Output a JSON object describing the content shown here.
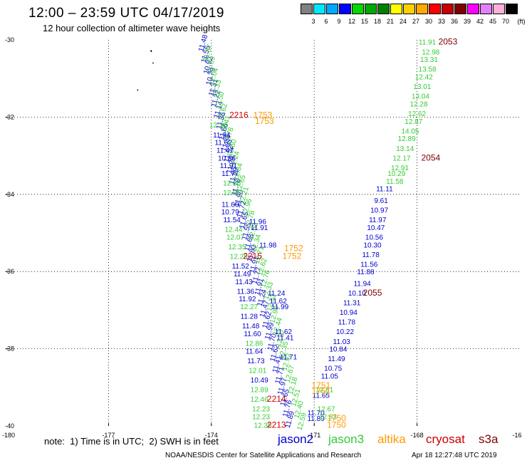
{
  "header": {
    "title": "12:00 – 23:59 UTC 04/17/2019",
    "subtitle": "12 hour collection of altimeter wave heights"
  },
  "color_scale": {
    "unit": "(ft)",
    "labels": [
      "3",
      "6",
      "9",
      "12",
      "15",
      "18",
      "21",
      "24",
      "27",
      "30",
      "33",
      "36",
      "39",
      "42",
      "45",
      "70"
    ],
    "colors": [
      "#808080",
      "#00e8ff",
      "#00a8ff",
      "#0000ff",
      "#00d800",
      "#00a800",
      "#008000",
      "#ffff00",
      "#ffd000",
      "#ffa800",
      "#ff0000",
      "#c80000",
      "#800000",
      "#ff00ff",
      "#e080ff",
      "#ffb0d8",
      "#000000"
    ]
  },
  "axes": {
    "x_ticks": [
      "-180",
      "-177",
      "-174",
      "-171",
      "-168",
      "-16"
    ],
    "y_ticks": [
      "-30",
      "-32",
      "-34",
      "-36",
      "-38",
      "-40"
    ]
  },
  "satellite_colors": {
    "jason2": "#0000cc",
    "jason3": "#33cc33",
    "altika": "#ff9900",
    "cryosat": "#cc0000",
    "s3a": "#800000"
  },
  "tracks": [
    {
      "id": "j2a",
      "sat": "jason2",
      "lon0": -174.18,
      "lat0": -30.1,
      "lon1": -171.65,
      "lat1": -39.85,
      "rot": -74,
      "labels": [
        "11.48",
        "11.55",
        "10.92",
        "10.79",
        "11.31",
        "11.22",
        "11.14",
        "11.36",
        "11.66",
        "11.36",
        "11.52",
        "11.29",
        "11.59",
        "11.76",
        "11.90",
        "11.72",
        "11.65",
        "11.55",
        "11.68",
        "11.80",
        "11.91",
        "11.77",
        "11.91",
        "11.24",
        "11.47",
        "11.62",
        "11.99",
        "11.70",
        "11.62",
        "11.41",
        "11.71",
        "11.97",
        "11.65",
        "11.76",
        "11.89"
      ]
    },
    {
      "id": "j3a",
      "sat": "jason3",
      "lon0": -174.05,
      "lat0": -30.35,
      "lon1": -171.3,
      "lat1": -39.9,
      "rot": -74,
      "labels": [
        "11.87",
        "11.59",
        "12.04",
        "12.33",
        "12.50",
        "12.62",
        "12.41",
        "12.78",
        "12.60",
        "12.24",
        "12.84",
        "12.65",
        "12.21",
        "12.96",
        "12.78",
        "12.53",
        "12.34",
        "12.71",
        "12.62",
        "12.76",
        "12.33",
        "12.52",
        "12.94",
        "12.44",
        "12.87",
        "12.35",
        "12.92",
        "12.67",
        "12.18",
        "12.51",
        "12.40",
        "12.59"
      ]
    }
  ],
  "columns": [
    {
      "id": "j2col",
      "sat": "jason2",
      "labels": [
        {
          "text": "11.94",
          "lon": -173.7,
          "lat": -32.45
        },
        {
          "text": "11.62",
          "lon": -173.65,
          "lat": -32.65
        },
        {
          "text": "11.47",
          "lon": -173.6,
          "lat": -32.85
        },
        {
          "text": "10.86",
          "lon": -173.55,
          "lat": -33.05
        },
        {
          "text": "11.91",
          "lon": -173.5,
          "lat": -33.25
        },
        {
          "text": "11.77",
          "lon": -173.45,
          "lat": -33.45
        },
        {
          "text": "11.60",
          "lon": -173.45,
          "lat": -34.25
        },
        {
          "text": "10.79",
          "lon": -173.45,
          "lat": -34.45
        },
        {
          "text": "11.54",
          "lon": -173.4,
          "lat": -34.65
        },
        {
          "text": "11.52",
          "lon": -173.15,
          "lat": -35.85
        },
        {
          "text": "11.49",
          "lon": -173.1,
          "lat": -36.05
        },
        {
          "text": "11.43",
          "lon": -173.05,
          "lat": -36.25
        },
        {
          "text": "11.36",
          "lon": -173.0,
          "lat": -36.5
        },
        {
          "text": "11.92",
          "lon": -172.95,
          "lat": -36.7
        },
        {
          "text": "11.28",
          "lon": -172.9,
          "lat": -37.15
        },
        {
          "text": "11.48",
          "lon": -172.85,
          "lat": -37.4
        },
        {
          "text": "11.60",
          "lon": -172.8,
          "lat": -37.6
        },
        {
          "text": "11.64",
          "lon": -172.75,
          "lat": -38.05
        },
        {
          "text": "11.73",
          "lon": -172.7,
          "lat": -38.3
        },
        {
          "text": "10.49",
          "lon": -172.6,
          "lat": -38.8
        }
      ]
    },
    {
      "id": "j3col",
      "sat": "jason3",
      "labels": [
        {
          "text": "12.30",
          "lon": -173.8,
          "lat": -32.2
        },
        {
          "text": "12.86",
          "lon": -173.4,
          "lat": -33.7
        },
        {
          "text": "12.86",
          "lon": -173.4,
          "lat": -33.95
        },
        {
          "text": "12.44",
          "lon": -173.35,
          "lat": -34.9
        },
        {
          "text": "12.07",
          "lon": -173.3,
          "lat": -35.1
        },
        {
          "text": "12.35",
          "lon": -173.25,
          "lat": -35.35
        },
        {
          "text": "12.28",
          "lon": -173.2,
          "lat": -35.6
        },
        {
          "text": "12.27",
          "lon": -172.9,
          "lat": -36.9
        },
        {
          "text": "12.86",
          "lon": -172.75,
          "lat": -37.85
        },
        {
          "text": "12.01",
          "lon": -172.65,
          "lat": -38.55
        },
        {
          "text": "12.89",
          "lon": -172.6,
          "lat": -39.05
        },
        {
          "text": "12.46",
          "lon": -172.6,
          "lat": -39.3
        },
        {
          "text": "12.23",
          "lon": -172.55,
          "lat": -39.55
        },
        {
          "text": "12.23",
          "lon": -172.55,
          "lat": -39.75
        },
        {
          "text": "12.36",
          "lon": -172.5,
          "lat": -39.97
        }
      ]
    },
    {
      "id": "rjcol",
      "sat": "jason2",
      "labels": [
        {
          "text": "11.11",
          "lon": -168.95,
          "lat": -33.85
        },
        {
          "text": "9.61",
          "lon": -169.05,
          "lat": -34.15
        },
        {
          "text": "10.97",
          "lon": -169.1,
          "lat": -34.4
        },
        {
          "text": "11.97",
          "lon": -169.15,
          "lat": -34.65
        },
        {
          "text": "10.47",
          "lon": -169.2,
          "lat": -34.85
        },
        {
          "text": "10.56",
          "lon": -169.25,
          "lat": -35.1
        },
        {
          "text": "10.30",
          "lon": -169.3,
          "lat": -35.3
        },
        {
          "text": "11.78",
          "lon": -169.35,
          "lat": -35.55
        },
        {
          "text": "11.56",
          "lon": -169.4,
          "lat": -35.8
        },
        {
          "text": "11.88",
          "lon": -169.5,
          "lat": -36.0
        },
        {
          "text": "11.94",
          "lon": -169.6,
          "lat": -36.3
        },
        {
          "text": "10.10",
          "lon": -169.75,
          "lat": -36.55
        },
        {
          "text": "11.31",
          "lon": -169.9,
          "lat": -36.8
        },
        {
          "text": "10.94",
          "lon": -170.0,
          "lat": -37.05
        },
        {
          "text": "11.78",
          "lon": -170.05,
          "lat": -37.3
        },
        {
          "text": "10.22",
          "lon": -170.1,
          "lat": -37.55
        },
        {
          "text": "11.03",
          "lon": -170.2,
          "lat": -37.8
        },
        {
          "text": "10.84",
          "lon": -170.3,
          "lat": -38.0
        },
        {
          "text": "11.49",
          "lon": -170.35,
          "lat": -38.25
        },
        {
          "text": "10.75",
          "lon": -170.45,
          "lat": -38.5
        },
        {
          "text": "11.05",
          "lon": -170.55,
          "lat": -38.7
        },
        {
          "text": "11.65",
          "lon": -170.8,
          "lat": -39.2
        },
        {
          "text": "11.70",
          "lon": -170.95,
          "lat": -39.65
        },
        {
          "text": "11.89",
          "lon": -170.95,
          "lat": -39.8
        }
      ]
    },
    {
      "id": "r3col",
      "sat": "jason3",
      "labels": [
        {
          "text": "11.91",
          "lon": -167.7,
          "lat": -30.05
        },
        {
          "text": "12.98",
          "lon": -167.6,
          "lat": -30.3
        },
        {
          "text": "13.31",
          "lon": -167.65,
          "lat": -30.5
        },
        {
          "text": "13.58",
          "lon": -167.7,
          "lat": -30.75
        },
        {
          "text": "12.42",
          "lon": -167.8,
          "lat": -30.95
        },
        {
          "text": "13.01",
          "lon": -167.85,
          "lat": -31.2
        },
        {
          "text": "13.04",
          "lon": -167.9,
          "lat": -31.45
        },
        {
          "text": "12.28",
          "lon": -167.95,
          "lat": -31.65
        },
        {
          "text": "12.62",
          "lon": -168.0,
          "lat": -31.9
        },
        {
          "text": "12.87",
          "lon": -168.1,
          "lat": -32.1
        },
        {
          "text": "14.05",
          "lon": -168.2,
          "lat": -32.35
        },
        {
          "text": "12.89",
          "lon": -168.3,
          "lat": -32.55
        },
        {
          "text": "13.14",
          "lon": -168.35,
          "lat": -32.8
        },
        {
          "text": "12.17",
          "lon": -168.45,
          "lat": -33.05
        },
        {
          "text": "12.91",
          "lon": -168.5,
          "lat": -33.3
        },
        {
          "text": "10.29",
          "lon": -168.6,
          "lat": -33.45
        },
        {
          "text": "11.58",
          "lon": -168.65,
          "lat": -33.65
        },
        {
          "text": "12.81",
          "lon": -170.7,
          "lat": -39.05
        },
        {
          "text": "12.67",
          "lon": -170.65,
          "lat": -39.55
        },
        {
          "text": "12.83",
          "lon": -170.6,
          "lat": -39.75
        }
      ]
    },
    {
      "id": "j2mid",
      "sat": "jason2",
      "labels": [
        {
          "text": "11.96",
          "lon": -172.65,
          "lat": -34.7
        },
        {
          "text": "11.91",
          "lon": -172.6,
          "lat": -34.85
        },
        {
          "text": "11.98",
          "lon": -172.35,
          "lat": -35.3
        },
        {
          "text": "11.24",
          "lon": -172.1,
          "lat": -36.55
        },
        {
          "text": "11.62",
          "lon": -172.05,
          "lat": -36.75
        },
        {
          "text": "11.99",
          "lon": -172.0,
          "lat": -36.9
        },
        {
          "text": "11.62",
          "lon": -171.9,
          "lat": -37.55
        },
        {
          "text": "11.41",
          "lon": -171.85,
          "lat": -37.7
        },
        {
          "text": "11.71",
          "lon": -171.75,
          "lat": -38.2
        }
      ]
    }
  ],
  "times": [
    {
      "text": "2053",
      "sat": "s3a",
      "lon": -167.1,
      "lat": -30.05
    },
    {
      "text": "2054",
      "sat": "s3a",
      "lon": -167.6,
      "lat": -33.05
    },
    {
      "text": "2055",
      "sat": "s3a",
      "lon": -169.3,
      "lat": -36.55
    },
    {
      "text": "2216",
      "sat": "cryosat",
      "lon": -173.2,
      "lat": -31.95
    },
    {
      "text": "1753",
      "sat": "altika",
      "lon": -172.5,
      "lat": -31.95
    },
    {
      "text": "1753",
      "sat": "altika",
      "lon": -172.45,
      "lat": -32.1
    },
    {
      "text": "2215",
      "sat": "cryosat",
      "lon": -172.8,
      "lat": -35.6
    },
    {
      "text": "1752",
      "sat": "altika",
      "lon": -171.6,
      "lat": -35.4
    },
    {
      "text": "1752",
      "sat": "altika",
      "lon": -171.65,
      "lat": -35.6
    },
    {
      "text": "2214",
      "sat": "cryosat",
      "lon": -172.1,
      "lat": -39.3
    },
    {
      "text": "1751",
      "sat": "altika",
      "lon": -170.8,
      "lat": -38.95
    },
    {
      "text": "1751",
      "sat": "altika",
      "lon": -170.8,
      "lat": -39.1
    },
    {
      "text": "2213",
      "sat": "cryosat",
      "lon": -172.1,
      "lat": -39.97
    },
    {
      "text": "1750",
      "sat": "altika",
      "lon": -170.35,
      "lat": -39.8
    },
    {
      "text": "1750",
      "sat": "altika",
      "lon": -170.35,
      "lat": -39.97
    }
  ],
  "legend": {
    "note": "note:  1) Time is in UTC;  2) SWH is in feet",
    "names": {
      "jason2": "jason2",
      "jason3": "jason3",
      "altika": "altika",
      "cryosat": "cryosat",
      "s3a": "s3a"
    }
  },
  "footer": {
    "credit": "NOAA/NESDIS Center for Satellite Applications and Research",
    "timestamp": "Apr 18 12:27:48 UTC 2019"
  }
}
